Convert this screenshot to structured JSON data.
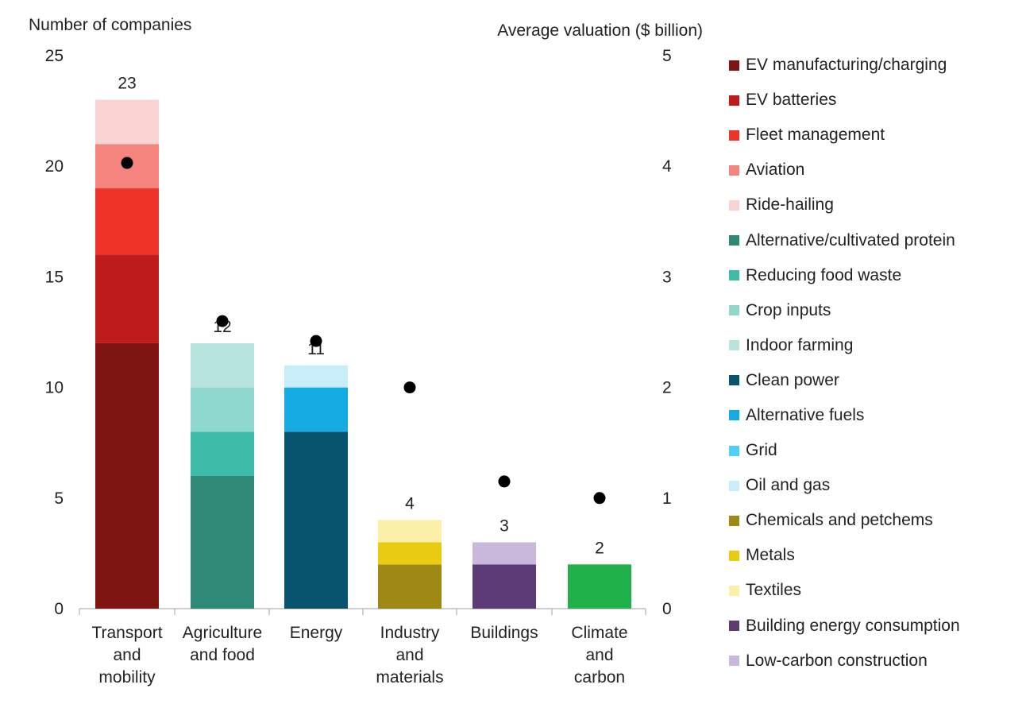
{
  "chart_data": {
    "type": "bar",
    "stacked": true,
    "left_axis": {
      "label": "Number of companies",
      "ylim": [
        0,
        25
      ],
      "ticks": [
        "0",
        "5",
        "10",
        "15",
        "20",
        "25"
      ]
    },
    "right_axis": {
      "label": "Average valuation ($ billion)",
      "ylim": [
        0,
        5
      ],
      "ticks": [
        "0",
        "1",
        "2",
        "3",
        "4",
        "5"
      ]
    },
    "categories": [
      {
        "label": [
          "Transport",
          "and",
          "mobility"
        ],
        "total": "23",
        "valuation": 4.03,
        "segments": [
          {
            "name": "EV manufacturing/charging",
            "value": 12
          },
          {
            "name": "EV batteries",
            "value": 4
          },
          {
            "name": "Fleet management",
            "value": 3
          },
          {
            "name": "Aviation",
            "value": 2
          },
          {
            "name": "Ride-hailing",
            "value": 2
          }
        ]
      },
      {
        "label": [
          "Agriculture",
          "and food"
        ],
        "total": "12",
        "valuation": 2.6,
        "segments": [
          {
            "name": "Alternative/cultivated protein",
            "value": 6
          },
          {
            "name": "Reducing food waste",
            "value": 2
          },
          {
            "name": "Crop inputs",
            "value": 2
          },
          {
            "name": "Indoor farming",
            "value": 2
          }
        ]
      },
      {
        "label": [
          "Energy"
        ],
        "total": "11",
        "valuation": 2.42,
        "segments": [
          {
            "name": "Clean power",
            "value": 8
          },
          {
            "name": "Alternative fuels",
            "value": 2
          },
          {
            "name": "Grid",
            "value": 0
          },
          {
            "name": "Oil and gas",
            "value": 1
          }
        ]
      },
      {
        "label": [
          "Industry",
          "and",
          "materials"
        ],
        "total": "4",
        "valuation": 2.0,
        "segments": [
          {
            "name": "Chemicals and petchems",
            "value": 2
          },
          {
            "name": "Metals",
            "value": 1
          },
          {
            "name": "Textiles",
            "value": 1
          }
        ]
      },
      {
        "label": [
          "Buildings"
        ],
        "total": "3",
        "valuation": 1.15,
        "segments": [
          {
            "name": "Building energy consumption",
            "value": 2
          },
          {
            "name": "Low-carbon construction",
            "value": 1
          }
        ]
      },
      {
        "label": [
          "Climate",
          "and",
          "carbon"
        ],
        "total": "2",
        "valuation": 1.0,
        "segments": [
          {
            "name": "Climate and carbon",
            "value": 2
          }
        ]
      }
    ],
    "legend": [
      {
        "name": "EV manufacturing/charging",
        "color": "#7F1512"
      },
      {
        "name": "EV batteries",
        "color": "#BE1B1C"
      },
      {
        "name": "Fleet management",
        "color": "#EE3328"
      },
      {
        "name": "Aviation",
        "color": "#F4847D"
      },
      {
        "name": "Ride-hailing",
        "color": "#F9D3D1"
      },
      {
        "name": "Alternative/cultivated protein",
        "color": "#2E8A77"
      },
      {
        "name": "Reducing food waste",
        "color": "#3EBCA9"
      },
      {
        "name": "Crop inputs",
        "color": "#8FD8CE"
      },
      {
        "name": "Indoor farming",
        "color": "#B7E4DD"
      },
      {
        "name": "Clean power",
        "color": "#08536D"
      },
      {
        "name": "Alternative fuels",
        "color": "#14AAE2"
      },
      {
        "name": "Grid",
        "color": "#4FCFF3"
      },
      {
        "name": "Oil and gas",
        "color": "#C8EEFA"
      },
      {
        "name": "Chemicals and petchems",
        "color": "#A08815"
      },
      {
        "name": "Metals",
        "color": "#E9CC12"
      },
      {
        "name": "Textiles",
        "color": "#FCF0A8"
      },
      {
        "name": "Building energy consumption",
        "color": "#5B3A75"
      },
      {
        "name": "Low-carbon construction",
        "color": "#C9B7DC"
      }
    ],
    "climate_color": "#20B14B",
    "marker_color": "#000000",
    "grid": false,
    "legend_position": "right"
  }
}
